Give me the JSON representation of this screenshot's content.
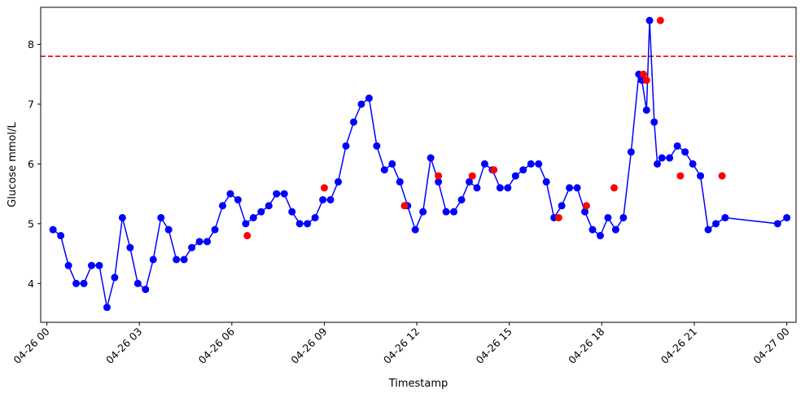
{
  "chart_data": {
    "type": "line",
    "xlabel": "Timestamp",
    "ylabel": "Glucose mmol/L",
    "xlim": [
      -0.2,
      24.3
    ],
    "ylim": [
      3.35,
      8.62
    ],
    "x_ticks": [
      0,
      3,
      6,
      9,
      12,
      15,
      18,
      21,
      24
    ],
    "x_tick_labels": [
      "04-26 00",
      "04-26 03",
      "04-26 06",
      "04-26 09",
      "04-26 12",
      "04-26 15",
      "04-26 18",
      "04-26 21",
      "04-27 00"
    ],
    "y_ticks": [
      4,
      5,
      6,
      7,
      8
    ],
    "y_tick_labels": [
      "4",
      "5",
      "6",
      "7",
      "8"
    ],
    "threshold": {
      "value": 7.8,
      "color": "#ff0000",
      "style": "dashed"
    },
    "grid": false,
    "line_color": "#0000ff",
    "highlight_color": "#ff0000",
    "series": [
      {
        "x": [
          0.2,
          0.45,
          0.7,
          0.95,
          1.2,
          1.45,
          1.7,
          1.95,
          2.2,
          2.45,
          2.7,
          2.95,
          3.2,
          3.45,
          3.7,
          3.95,
          4.2,
          4.45,
          4.7,
          4.95,
          5.2,
          5.45,
          5.7,
          5.95,
          6.2,
          6.45,
          6.7,
          6.95,
          7.2,
          7.45,
          7.7,
          7.95,
          8.2,
          8.45,
          8.7,
          8.95,
          9.2,
          9.45,
          9.7,
          9.95,
          10.2,
          10.45,
          10.7,
          10.95,
          11.2,
          11.45,
          11.7,
          11.95,
          12.2,
          12.45,
          12.7,
          12.95,
          13.2,
          13.45,
          13.7,
          13.95,
          14.2,
          14.45,
          14.7,
          14.95,
          15.2,
          15.45,
          15.7,
          15.95,
          16.2,
          16.45,
          16.7,
          16.95,
          17.2,
          17.45,
          17.7,
          17.95,
          18.2,
          18.45,
          18.7,
          18.95,
          19.2,
          19.3,
          19.45,
          19.55,
          19.7,
          19.8,
          19.95,
          20.2,
          20.45,
          20.7,
          20.95,
          21.2,
          21.45,
          21.7,
          22.0,
          23.7,
          24.0
        ],
        "y": [
          4.9,
          4.8,
          4.3,
          4.0,
          4.0,
          4.3,
          4.3,
          3.6,
          4.1,
          5.1,
          4.6,
          4.0,
          3.9,
          4.4,
          5.1,
          4.9,
          4.4,
          4.4,
          4.6,
          4.7,
          4.7,
          4.9,
          5.3,
          5.5,
          5.4,
          5.0,
          5.1,
          5.2,
          5.3,
          5.5,
          5.5,
          5.2,
          5.0,
          5.0,
          5.1,
          5.4,
          5.4,
          5.7,
          6.3,
          6.7,
          7.0,
          7.1,
          6.3,
          5.9,
          6.0,
          5.7,
          5.3,
          4.9,
          5.2,
          6.1,
          5.7,
          5.2,
          5.2,
          5.4,
          5.7,
          5.6,
          6.0,
          5.9,
          5.6,
          5.6,
          5.8,
          5.9,
          6.0,
          6.0,
          5.7,
          5.1,
          5.3,
          5.6,
          5.6,
          5.2,
          4.9,
          4.8,
          5.1,
          4.9,
          5.1,
          6.2,
          7.5,
          7.4,
          6.9,
          8.4,
          6.7,
          6.0,
          6.1,
          6.1,
          6.3,
          6.2,
          6.0,
          5.8,
          4.9,
          5.0,
          5.1,
          5.0,
          5.1
        ]
      }
    ],
    "highlights": {
      "x": [
        6.5,
        9.0,
        11.6,
        12.7,
        13.8,
        14.5,
        16.6,
        17.5,
        18.4,
        19.35,
        19.45,
        19.9,
        20.55,
        21.9
      ],
      "y": [
        4.8,
        5.6,
        5.3,
        5.8,
        5.8,
        5.9,
        5.1,
        5.3,
        5.6,
        7.5,
        7.4,
        8.4,
        5.8,
        5.8
      ]
    }
  }
}
